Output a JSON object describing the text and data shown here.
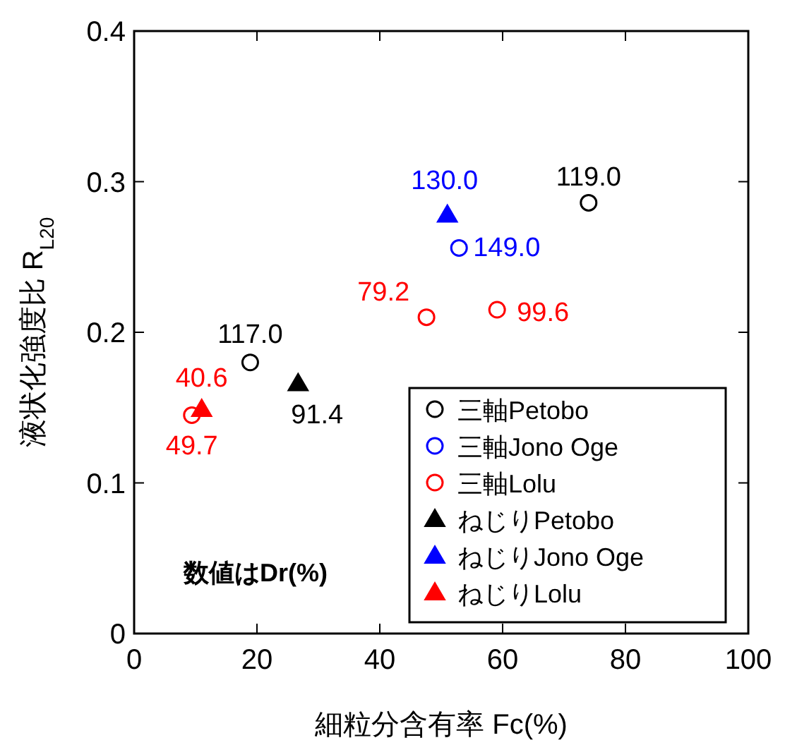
{
  "chart_data": {
    "type": "scatter",
    "xlabel": "細粒分含有率 Fc(%)",
    "ylabel": "液状化強度比 R$_{L20}$",
    "xlim": [
      0,
      100
    ],
    "ylim": [
      0,
      0.4
    ],
    "xticks": [
      0,
      20,
      40,
      60,
      80,
      100
    ],
    "yticks": [
      0,
      0.1,
      0.2,
      0.3,
      0.4
    ],
    "grid": false,
    "legend": "bottom right",
    "annotations": [
      "数値はDr(%)",
      {
        "text": "119.0",
        "x": 74.0,
        "y": 0.286
      },
      {
        "text": "117.0",
        "x": 18.9,
        "y": 0.18
      },
      {
        "text": "149.0",
        "x": 52.9,
        "y": 0.256
      },
      {
        "text": "79.2",
        "x": 47.6,
        "y": 0.21
      },
      {
        "text": "99.6",
        "x": 59.1,
        "y": 0.215
      },
      {
        "text": "49.7",
        "x": 9.4,
        "y": 0.145
      },
      {
        "text": "91.4",
        "x": 26.7,
        "y": 0.166
      },
      {
        "text": "130.0",
        "x": 51.0,
        "y": 0.278
      },
      {
        "text": "40.6",
        "x": 11.0,
        "y": 0.149
      }
    ],
    "series": [
      {
        "name": "三軸Petobo",
        "color": "#000000",
        "marker": "circle",
        "x": [
          74.0,
          18.9
        ],
        "values": [
          0.286,
          0.18
        ]
      },
      {
        "name": "三軸Jono Oge",
        "color": "#0000ff",
        "marker": "circle",
        "x": [
          52.9
        ],
        "values": [
          0.256
        ]
      },
      {
        "name": "三軸Lolu",
        "color": "#ff0000",
        "marker": "circle",
        "x": [
          47.6,
          59.1,
          9.4
        ],
        "values": [
          0.21,
          0.215,
          0.145
        ]
      },
      {
        "name": "ねじりPetobo",
        "color": "#000000",
        "marker": "triangle",
        "x": [
          26.7
        ],
        "values": [
          0.166
        ]
      },
      {
        "name": "ねじりJono Oge",
        "color": "#0000ff",
        "marker": "triangle",
        "x": [
          51.0
        ],
        "values": [
          0.278
        ]
      },
      {
        "name": "ねじりLolu",
        "color": "#ff0000",
        "marker": "triangle",
        "x": [
          11.0
        ],
        "values": [
          0.149
        ]
      }
    ]
  }
}
